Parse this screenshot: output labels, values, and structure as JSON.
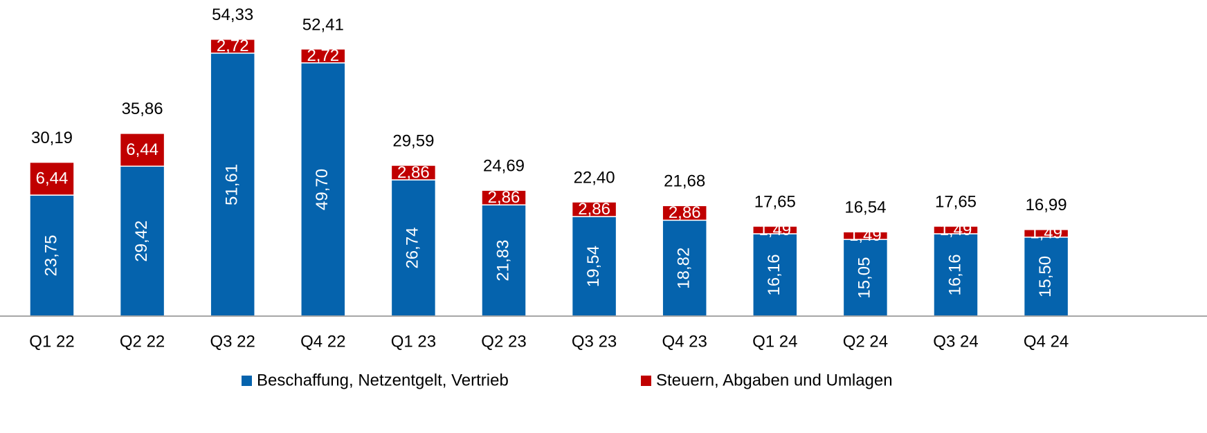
{
  "chart_data": {
    "type": "stacked_bar",
    "categories": [
      "Q1 22",
      "Q2 22",
      "Q3 22",
      "Q4 22",
      "Q1 23",
      "Q2 23",
      "Q3 23",
      "Q4 23",
      "Q1 24",
      "Q2 24",
      "Q3 24",
      "Q4 24"
    ],
    "series": [
      {
        "name": "Beschaffung, Netzentgelt, Vertrieb",
        "color": "#0563ad",
        "values": [
          23.75,
          29.42,
          51.61,
          49.7,
          26.74,
          21.83,
          19.54,
          18.82,
          16.16,
          15.05,
          16.16,
          15.5
        ],
        "value_labels": [
          "23,75",
          "29,42",
          "51,61",
          "49,70",
          "26,74",
          "21,83",
          "19,54",
          "18,82",
          "16,16",
          "15,05",
          "16,16",
          "15,50"
        ]
      },
      {
        "name": "Steuern, Abgaben und Umlagen",
        "color": "#c00000",
        "values": [
          6.44,
          6.44,
          2.72,
          2.72,
          2.86,
          2.86,
          2.86,
          2.86,
          1.49,
          1.49,
          1.49,
          1.49
        ],
        "value_labels": [
          "6,44",
          "6,44",
          "2,72",
          "2,72",
          "2,86",
          "2,86",
          "2,86",
          "2,86",
          "1,49",
          "1,49",
          "1,49",
          "1,49"
        ]
      }
    ],
    "totals": [
      30.19,
      35.86,
      54.33,
      52.41,
      29.59,
      24.69,
      22.4,
      21.68,
      17.65,
      16.54,
      17.65,
      16.99
    ],
    "total_labels": [
      "30,19",
      "35,86",
      "54,33",
      "52,41",
      "29,59",
      "24,69",
      "22,40",
      "21,68",
      "17,65",
      "16,54",
      "17,65",
      "16,99"
    ],
    "ylim": [
      0,
      60
    ]
  }
}
